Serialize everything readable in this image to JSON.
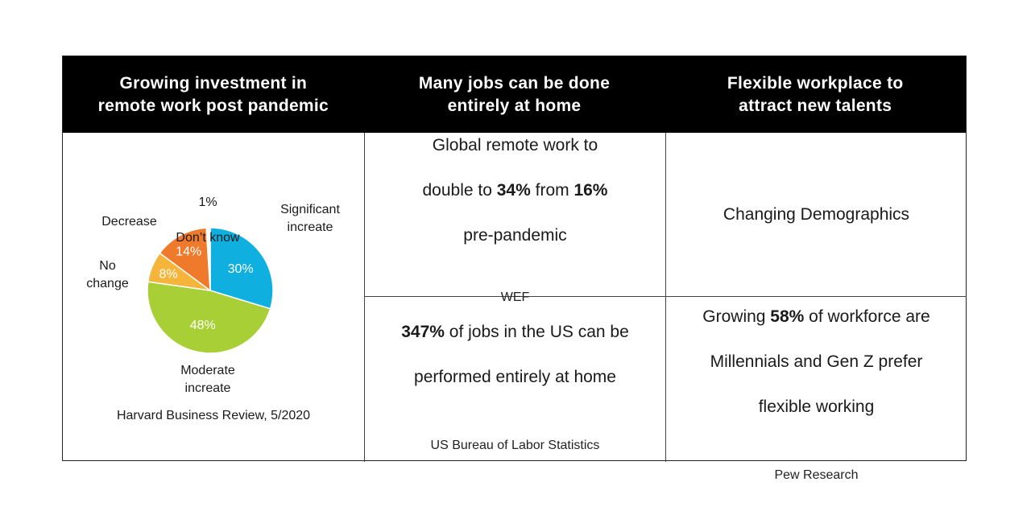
{
  "headers": [
    "Growing investment in\nremote work post pandemic",
    "Many jobs can be done\nentirely at home",
    "Flexible workplace to\nattract new talents"
  ],
  "chart_data": {
    "type": "pie",
    "title": "",
    "slices": [
      {
        "label": "Significant\nincreate",
        "value": 30,
        "value_label": "30%",
        "color": "#0fb0e0"
      },
      {
        "label": "Moderate\nincreate",
        "value": 48,
        "value_label": "48%",
        "color": "#a8cf36"
      },
      {
        "label": "No\nchange",
        "value": 8,
        "value_label": "8%",
        "color": "#f5b53a"
      },
      {
        "label": "Decrease",
        "value": 14,
        "value_label": "14%",
        "color": "#ef7a2b"
      },
      {
        "label": "Don’t know",
        "value": 1,
        "value_label": "1%",
        "color": "#ffffff"
      }
    ],
    "source": "Harvard Business Review, 5/2020"
  },
  "cells": {
    "wef": {
      "line1": "Global remote work to",
      "line2_pre": "double to ",
      "line2_b1": "34%",
      "line2_mid": " from ",
      "line2_b2": "16%",
      "line3": "pre-pandemic",
      "source": "WEF"
    },
    "demographics": {
      "text": "Changing Demographics"
    },
    "bls": {
      "bold": "347%",
      "line1_rest": " of jobs in the US can be",
      "line2": "performed entirely at home",
      "source": "US Bureau of Labor Statistics"
    },
    "pew": {
      "line1_pre": "Growing ",
      "line1_b": "58%",
      "line1_post": " of workforce are",
      "line2": "Millennials and Gen Z prefer",
      "line3": "flexible working",
      "source": "Pew Research"
    }
  }
}
